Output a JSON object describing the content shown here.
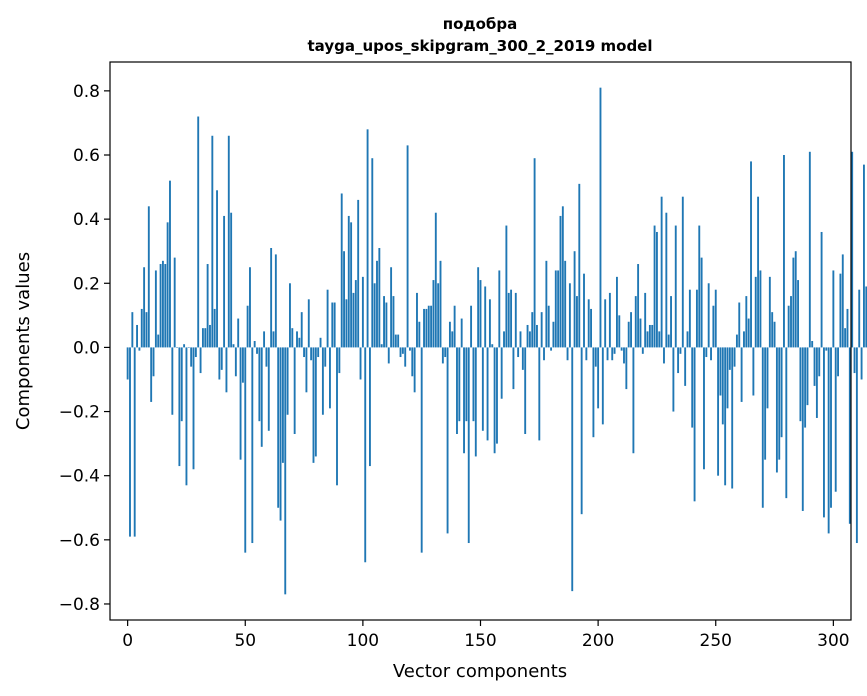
{
  "chart_data": {
    "type": "bar",
    "title": "подобра",
    "subtitle": "tayga_upos_skipgram_300_2_2019 model",
    "xlabel": "Vector components",
    "ylabel": "Components values",
    "xlim": [
      -7.5,
      307.5
    ],
    "ylim": [
      -0.85,
      0.89
    ],
    "xticks": [
      0,
      50,
      100,
      150,
      200,
      250,
      300
    ],
    "yticks": [
      -0.8,
      -0.6,
      -0.4,
      -0.2,
      0.0,
      0.2,
      0.4,
      0.6,
      0.8
    ],
    "xtick_labels": [
      "0",
      "50",
      "100",
      "150",
      "200",
      "250",
      "300"
    ],
    "ytick_labels": [
      "−0.8",
      "−0.6",
      "−0.4",
      "−0.2",
      "0.0",
      "0.2",
      "0.4",
      "0.6",
      "0.8"
    ],
    "grid": false,
    "bar_color": "#1f77b4",
    "values": [
      -0.1,
      -0.59,
      0.11,
      -0.59,
      0.07,
      -0.01,
      0.12,
      0.25,
      0.11,
      0.44,
      -0.17,
      -0.09,
      0.24,
      0.04,
      0.26,
      0.27,
      0.26,
      0.39,
      0.52,
      -0.21,
      0.28,
      0.0,
      -0.37,
      -0.23,
      0.01,
      -0.43,
      0.0,
      -0.06,
      -0.38,
      -0.03,
      0.72,
      -0.08,
      0.06,
      0.06,
      0.26,
      0.07,
      0.66,
      0.12,
      0.49,
      -0.1,
      -0.07,
      0.41,
      -0.14,
      0.66,
      0.42,
      0.01,
      -0.09,
      0.09,
      -0.35,
      -0.11,
      -0.64,
      0.13,
      0.25,
      -0.61,
      0.02,
      -0.02,
      -0.23,
      -0.31,
      0.05,
      -0.06,
      -0.26,
      0.31,
      0.05,
      0.29,
      -0.5,
      -0.54,
      -0.36,
      -0.77,
      -0.21,
      0.2,
      0.06,
      -0.27,
      0.05,
      0.03,
      0.11,
      -0.03,
      -0.14,
      0.15,
      -0.04,
      -0.36,
      -0.34,
      -0.03,
      0.03,
      -0.21,
      -0.06,
      0.18,
      -0.19,
      0.14,
      0.14,
      -0.43,
      -0.08,
      0.48,
      0.3,
      0.15,
      0.41,
      0.39,
      0.17,
      0.21,
      0.46,
      -0.1,
      0.22,
      -0.67,
      0.68,
      -0.37,
      0.59,
      0.2,
      0.27,
      0.31,
      0.01,
      0.16,
      0.14,
      -0.05,
      0.25,
      0.16,
      0.04,
      0.04,
      -0.03,
      -0.02,
      -0.06,
      0.63,
      -0.01,
      -0.09,
      -0.14,
      0.17,
      0.08,
      -0.64,
      0.12,
      0.12,
      0.13,
      0.13,
      0.21,
      0.42,
      0.2,
      0.27,
      -0.05,
      -0.03,
      -0.58,
      0.08,
      0.05,
      0.13,
      -0.27,
      -0.23,
      0.09,
      -0.33,
      -0.23,
      -0.61,
      0.13,
      -0.23,
      -0.34,
      0.25,
      0.21,
      -0.26,
      0.19,
      -0.29,
      0.15,
      0.01,
      -0.33,
      -0.3,
      0.24,
      -0.16,
      0.05,
      0.38,
      0.17,
      0.18,
      -0.13,
      0.17,
      -0.03,
      0.05,
      -0.07,
      -0.27,
      0.07,
      0.05,
      0.11,
      0.59,
      0.07,
      -0.29,
      0.11,
      -0.04,
      0.27,
      0.13,
      -0.01,
      0.08,
      0.24,
      0.24,
      0.41,
      0.44,
      0.27,
      -0.04,
      0.2,
      -0.76,
      0.3,
      0.16,
      0.51,
      -0.52,
      0.23,
      -0.04,
      0.15,
      0.12,
      -0.28,
      -0.06,
      -0.19,
      0.81,
      -0.24,
      0.15,
      -0.04,
      0.17,
      -0.04,
      -0.02,
      0.22,
      0.1,
      -0.01,
      -0.05,
      -0.13,
      0.08,
      0.11,
      -0.33,
      0.16,
      0.26,
      0.09,
      -0.02,
      0.17,
      0.05,
      0.07,
      0.07,
      0.38,
      0.36,
      0.05,
      0.47,
      -0.05,
      0.42,
      0.04,
      0.16,
      -0.2,
      0.38,
      -0.08,
      -0.02,
      0.47,
      -0.12,
      0.05,
      0.18,
      -0.25,
      -0.48,
      0.18,
      0.38,
      0.28,
      -0.38,
      -0.03,
      0.2,
      -0.04,
      0.13,
      0.18,
      -0.4,
      -0.15,
      -0.24,
      -0.43,
      -0.19,
      -0.07,
      -0.44,
      -0.06,
      0.04,
      0.14,
      -0.17,
      0.05,
      0.16,
      0.09,
      0.58,
      -0.15,
      0.22,
      0.47,
      0.24,
      -0.5,
      -0.35,
      -0.19,
      0.22,
      0.11,
      0.08,
      -0.39,
      -0.35,
      -0.28,
      0.6,
      -0.47,
      0.13,
      0.16,
      0.28,
      0.3,
      0.21,
      -0.23,
      -0.51,
      -0.25,
      -0.18,
      0.61,
      0.02,
      -0.12,
      -0.22,
      -0.09,
      0.36,
      -0.53,
      -0.01,
      -0.58,
      -0.5,
      0.24,
      -0.45,
      -0.09,
      0.23,
      0.29,
      0.06,
      0.12,
      -0.55,
      0.61,
      -0.08,
      -0.61,
      0.18,
      -0.1,
      0.57,
      0.19,
      -0.2,
      -0.03,
      -0.45
    ]
  }
}
